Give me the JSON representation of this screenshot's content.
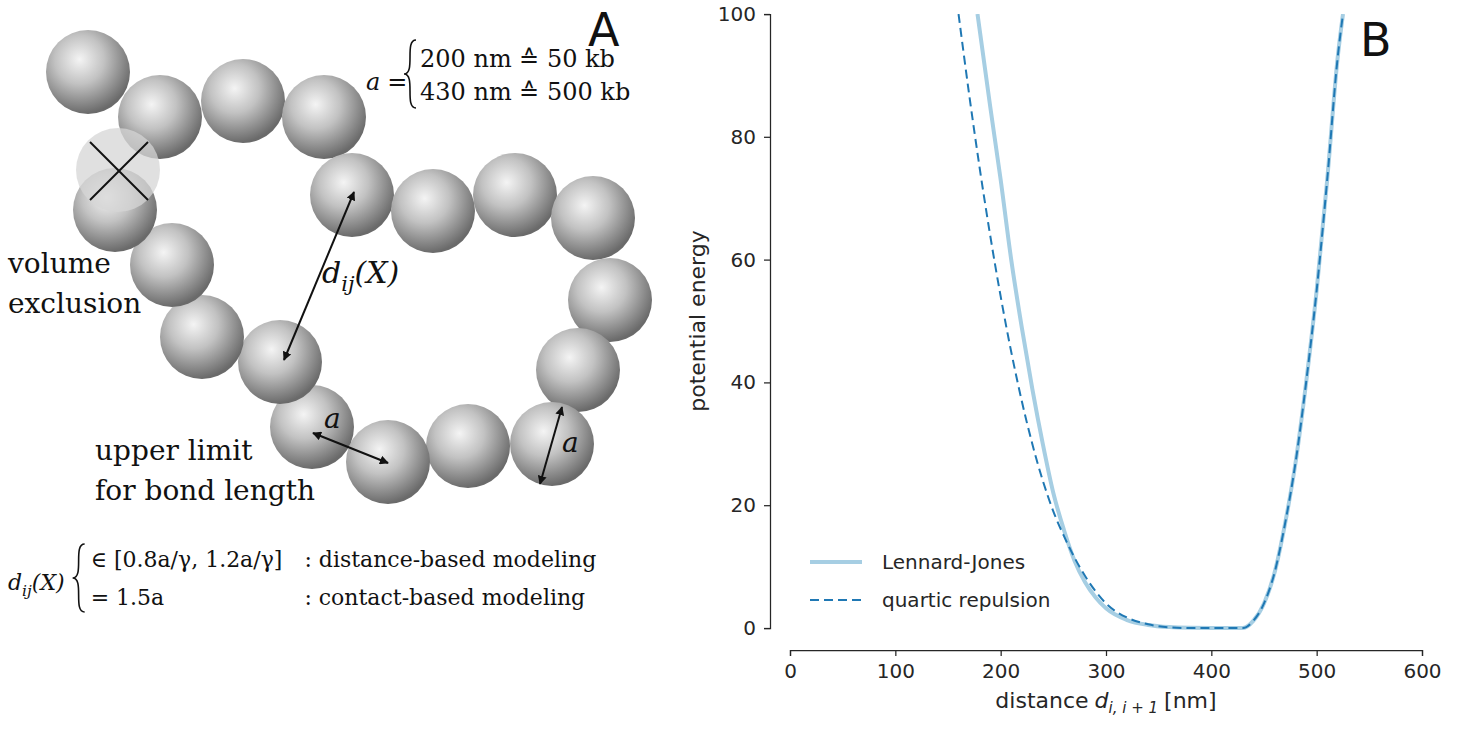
{
  "diagram": {
    "panel_label": "A",
    "a_definition": {
      "symbol": "a",
      "relation": "=",
      "cases": [
        "200 nm ≙ 50 kb",
        "430 nm ≙ 500 kb"
      ]
    },
    "volume_exclusion": [
      "volume",
      "exclusion"
    ],
    "distance_label": {
      "symbol": "d",
      "subscript": "ij",
      "argument": "(X)"
    },
    "bond_length_label": [
      "upper limit",
      "for bond length"
    ],
    "bond_symbol": "a",
    "d_definition": {
      "symbol": "d",
      "subscript": "ij",
      "argument": "(X)",
      "cases": [
        {
          "condition": "∈ [0.8a/γ, 1.2a/γ]",
          "description": ": distance-based modeling"
        },
        {
          "condition": "= 1.5a",
          "description": ": contact-based modeling"
        }
      ]
    }
  },
  "chart_data": {
    "type": "line",
    "panel_label": "B",
    "xlabel": {
      "text": "distance",
      "symbol": "d",
      "subscript": "i, i + 1",
      "unit": "[nm]"
    },
    "ylabel": "potential energy",
    "xlim": [
      0,
      600
    ],
    "ylim": [
      0,
      100
    ],
    "xticks": [
      0,
      100,
      200,
      300,
      400,
      500,
      600
    ],
    "yticks": [
      0,
      20,
      40,
      60,
      80,
      100
    ],
    "grid": false,
    "legend": "lower left",
    "series": [
      {
        "name": "Lennard-Jones",
        "color": "#a6cee3",
        "line_style": "solid",
        "x": [
          178,
          190,
          200,
          210,
          220,
          230,
          240,
          250,
          260,
          270,
          280,
          290,
          300,
          320,
          340,
          360,
          380,
          400,
          430,
          440,
          450,
          460,
          470,
          480,
          490,
          500,
          510,
          520,
          525
        ],
        "values": [
          100,
          85,
          73,
          60,
          49,
          39,
          30,
          22,
          16,
          11,
          7.5,
          5,
          3.2,
          1.3,
          0.5,
          0.15,
          0.03,
          0,
          0,
          1.2,
          4,
          9,
          17,
          27,
          40,
          55,
          73,
          93,
          100
        ]
      },
      {
        "name": "quartic repulsion",
        "color": "#1f78b4",
        "line_style": "dashed",
        "x": [
          160,
          170,
          180,
          190,
          200,
          210,
          220,
          230,
          240,
          250,
          260,
          270,
          280,
          290,
          300,
          320,
          340,
          360,
          380,
          430,
          440,
          450,
          460,
          470,
          480,
          490,
          500,
          510,
          520,
          525
        ],
        "values": [
          100,
          87,
          75,
          64,
          54,
          45,
          37,
          30,
          24,
          19,
          15,
          11.5,
          8.5,
          6,
          4,
          1.7,
          0.6,
          0.1,
          0,
          0,
          1.2,
          4,
          9,
          17,
          27,
          40,
          55,
          73,
          93,
          100
        ]
      }
    ]
  }
}
